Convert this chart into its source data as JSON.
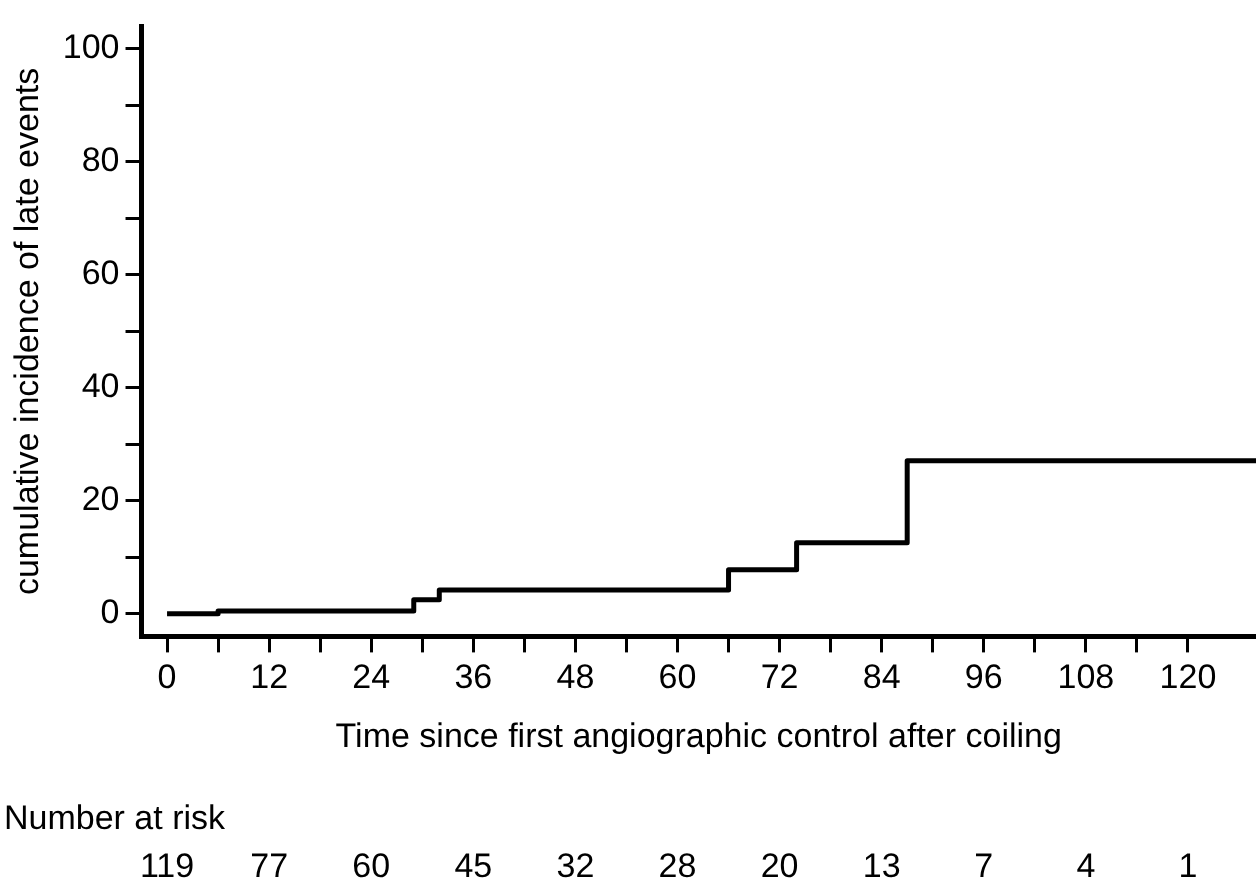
{
  "chart_data": {
    "type": "step",
    "xlabel": "Time since first angiographic control after coiling",
    "ylabel": "cumulative incidence of late events",
    "x": [
      0,
      6,
      29,
      32,
      66,
      74,
      87,
      128
    ],
    "values": [
      0,
      0.5,
      2.5,
      4.2,
      7.8,
      12.6,
      27.1,
      27.1
    ],
    "color": "#000000",
    "xlim": [
      -3,
      128
    ],
    "ylim": [
      -4,
      104
    ],
    "xticks": [
      0,
      {
        "value": 6,
        "label": null
      },
      12,
      {
        "value": 18,
        "label": null
      },
      24,
      {
        "value": 30,
        "label": null
      },
      36,
      {
        "value": 42,
        "label": null
      },
      48,
      {
        "value": 54,
        "label": null
      },
      60,
      {
        "value": 66,
        "label": null
      },
      72,
      {
        "value": 78,
        "label": null
      },
      84,
      {
        "value": 90,
        "label": null
      },
      96,
      {
        "value": 102,
        "label": null
      },
      108,
      {
        "value": 114,
        "label": null
      },
      120
    ],
    "yticks": [
      0,
      {
        "value": 10,
        "label": null
      },
      20,
      {
        "value": 30,
        "label": null
      },
      40,
      {
        "value": 50,
        "label": null
      },
      60,
      {
        "value": 70,
        "label": null
      },
      80,
      {
        "value": 90,
        "label": null
      },
      100
    ],
    "grid": false,
    "legend": false,
    "marker": "none",
    "line_style": "solid",
    "annotations": [
      "Number at risk",
      "119",
      "77",
      "60",
      "45",
      "32",
      "28",
      "20",
      "13",
      "7",
      "4",
      "1"
    ]
  }
}
